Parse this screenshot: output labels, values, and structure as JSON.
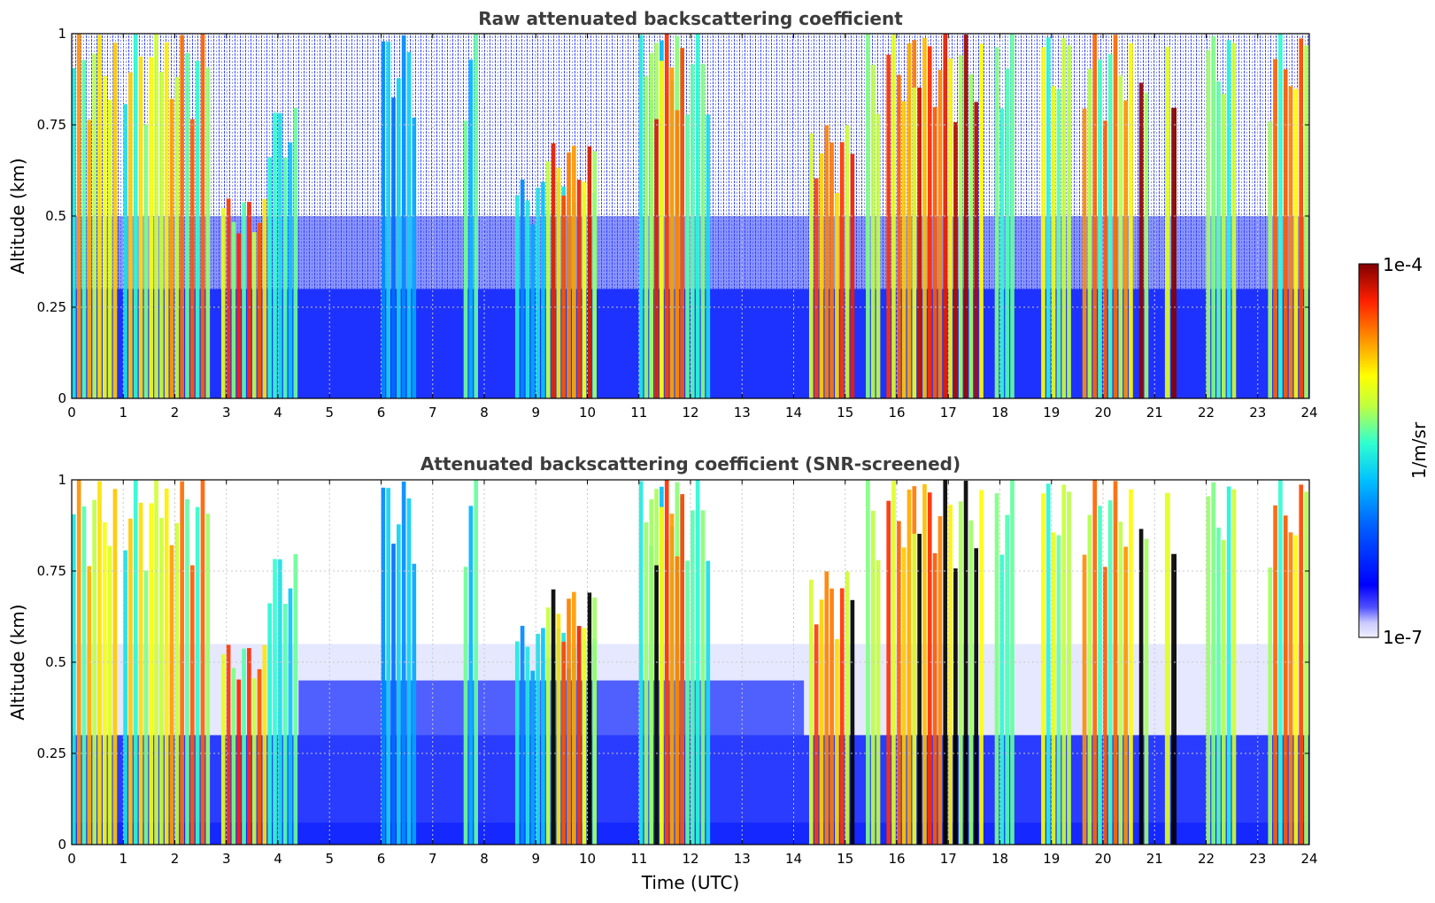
{
  "chart_data": [
    {
      "type": "heatmap",
      "title": "Raw attenuated backscattering coefficient",
      "xlabel": "",
      "ylabel": "Altitude (km)",
      "xlim": [
        0,
        24
      ],
      "ylim": [
        0,
        1
      ],
      "x_ticks": [
        0,
        1,
        2,
        3,
        4,
        5,
        6,
        7,
        8,
        9,
        10,
        11,
        12,
        13,
        14,
        15,
        16,
        17,
        18,
        19,
        20,
        21,
        22,
        23,
        24
      ],
      "y_ticks": [
        0,
        0.25,
        0.5,
        0.75,
        1
      ],
      "y_tick_labels": [
        "0",
        "0.25",
        "0.5",
        "0.75",
        "1"
      ],
      "grid": true,
      "screened": false,
      "bands": [
        {
          "x": [
            0.0,
            0.9
          ],
          "top": 1.0,
          "level": 0.8
        },
        {
          "x": [
            1.0,
            1.8
          ],
          "top": 1.0,
          "level": 0.75
        },
        {
          "x": [
            1.8,
            2.7
          ],
          "top": 1.0,
          "level": 0.85
        },
        {
          "x": [
            2.9,
            3.8
          ],
          "top": 0.55,
          "level": 0.9
        },
        {
          "x": [
            3.8,
            4.4
          ],
          "top": 0.8,
          "level": 0.55
        },
        {
          "x": [
            6.0,
            6.7
          ],
          "top": 1.0,
          "level": 0.4
        },
        {
          "x": [
            7.6,
            7.9
          ],
          "top": 1.0,
          "level": 0.55
        },
        {
          "x": [
            8.6,
            10.2
          ],
          "top": 0.6,
          "level": 0.45
        },
        {
          "x": [
            9.2,
            10.2
          ],
          "top": 0.7,
          "level": 0.95
        },
        {
          "x": [
            11.0,
            12.4
          ],
          "top": 1.0,
          "level": 0.6
        },
        {
          "x": [
            11.2,
            11.9
          ],
          "top": 1.0,
          "level": 0.95
        },
        {
          "x": [
            14.3,
            15.2
          ],
          "top": 0.75,
          "level": 0.92
        },
        {
          "x": [
            15.4,
            15.7
          ],
          "top": 1.0,
          "level": 0.7
        },
        {
          "x": [
            15.8,
            16.4
          ],
          "top": 1.0,
          "level": 0.9
        },
        {
          "x": [
            16.3,
            17.7
          ],
          "top": 1.0,
          "level": 0.98
        },
        {
          "x": [
            17.9,
            18.3
          ],
          "top": 1.0,
          "level": 0.6
        },
        {
          "x": [
            18.8,
            19.4
          ],
          "top": 1.0,
          "level": 0.7
        },
        {
          "x": [
            19.6,
            20.6
          ],
          "top": 1.0,
          "level": 0.85
        },
        {
          "x": [
            20.7,
            20.9
          ],
          "top": 1.0,
          "level": 1.0
        },
        {
          "x": [
            21.2,
            21.45
          ],
          "top": 1.0,
          "level": 1.0
        },
        {
          "x": [
            22.0,
            22.6
          ],
          "top": 1.0,
          "level": 0.65
        },
        {
          "x": [
            23.2,
            23.6
          ],
          "top": 1.0,
          "level": 0.85
        },
        {
          "x": [
            23.6,
            24.0
          ],
          "top": 1.0,
          "level": 0.9
        }
      ]
    },
    {
      "type": "heatmap",
      "title": "Attenuated backscattering coefficient (SNR-screened)",
      "xlabel": "Time (UTC)",
      "ylabel": "Altitude (km)",
      "xlim": [
        0,
        24
      ],
      "ylim": [
        0,
        1
      ],
      "x_ticks": [
        0,
        1,
        2,
        3,
        4,
        5,
        6,
        7,
        8,
        9,
        10,
        11,
        12,
        13,
        14,
        15,
        16,
        17,
        18,
        19,
        20,
        21,
        22,
        23,
        24
      ],
      "y_ticks": [
        0,
        0.25,
        0.5,
        0.75,
        1
      ],
      "y_tick_labels": [
        "0",
        "0.25",
        "0.5",
        "0.75",
        "1"
      ],
      "grid": true,
      "screened": true,
      "bands": [
        {
          "x": [
            0.0,
            0.9
          ],
          "top": 1.0,
          "level": 0.8
        },
        {
          "x": [
            1.0,
            1.8
          ],
          "top": 1.0,
          "level": 0.75
        },
        {
          "x": [
            1.8,
            2.7
          ],
          "top": 1.0,
          "level": 0.85
        },
        {
          "x": [
            2.9,
            3.8
          ],
          "top": 0.55,
          "level": 0.9
        },
        {
          "x": [
            3.8,
            4.4
          ],
          "top": 0.8,
          "level": 0.55
        },
        {
          "x": [
            6.0,
            6.7
          ],
          "top": 1.0,
          "level": 0.4
        },
        {
          "x": [
            7.6,
            7.9
          ],
          "top": 1.0,
          "level": 0.55
        },
        {
          "x": [
            8.6,
            10.2
          ],
          "top": 0.6,
          "level": 0.45
        },
        {
          "x": [
            9.2,
            10.2
          ],
          "top": 0.7,
          "level": 0.95
        },
        {
          "x": [
            11.0,
            12.4
          ],
          "top": 1.0,
          "level": 0.6
        },
        {
          "x": [
            11.2,
            11.9
          ],
          "top": 1.0,
          "level": 0.95
        },
        {
          "x": [
            14.3,
            15.2
          ],
          "top": 0.75,
          "level": 0.92
        },
        {
          "x": [
            15.4,
            15.7
          ],
          "top": 1.0,
          "level": 0.7
        },
        {
          "x": [
            15.8,
            16.4
          ],
          "top": 1.0,
          "level": 0.9
        },
        {
          "x": [
            16.3,
            17.7
          ],
          "top": 1.0,
          "level": 0.98
        },
        {
          "x": [
            17.9,
            18.3
          ],
          "top": 1.0,
          "level": 0.6
        },
        {
          "x": [
            18.8,
            19.4
          ],
          "top": 1.0,
          "level": 0.7
        },
        {
          "x": [
            19.6,
            20.6
          ],
          "top": 1.0,
          "level": 0.85
        },
        {
          "x": [
            20.7,
            20.9
          ],
          "top": 1.0,
          "level": 1.0
        },
        {
          "x": [
            21.2,
            21.45
          ],
          "top": 1.0,
          "level": 1.0
        },
        {
          "x": [
            22.0,
            22.6
          ],
          "top": 1.0,
          "level": 0.65
        },
        {
          "x": [
            23.2,
            23.6
          ],
          "top": 1.0,
          "level": 0.85
        },
        {
          "x": [
            23.6,
            24.0
          ],
          "top": 1.0,
          "level": 0.9
        }
      ]
    }
  ],
  "colorbar": {
    "min_label": "1e-7",
    "max_label": "1e-4",
    "unit_label": "1/m/sr",
    "scale": "log",
    "colormap": "jet"
  },
  "colors": {
    "background_blue": "#1e32ff",
    "low_white": "#ffffff",
    "screened_saturation": "#000000",
    "grid": "#c8c8c8"
  }
}
